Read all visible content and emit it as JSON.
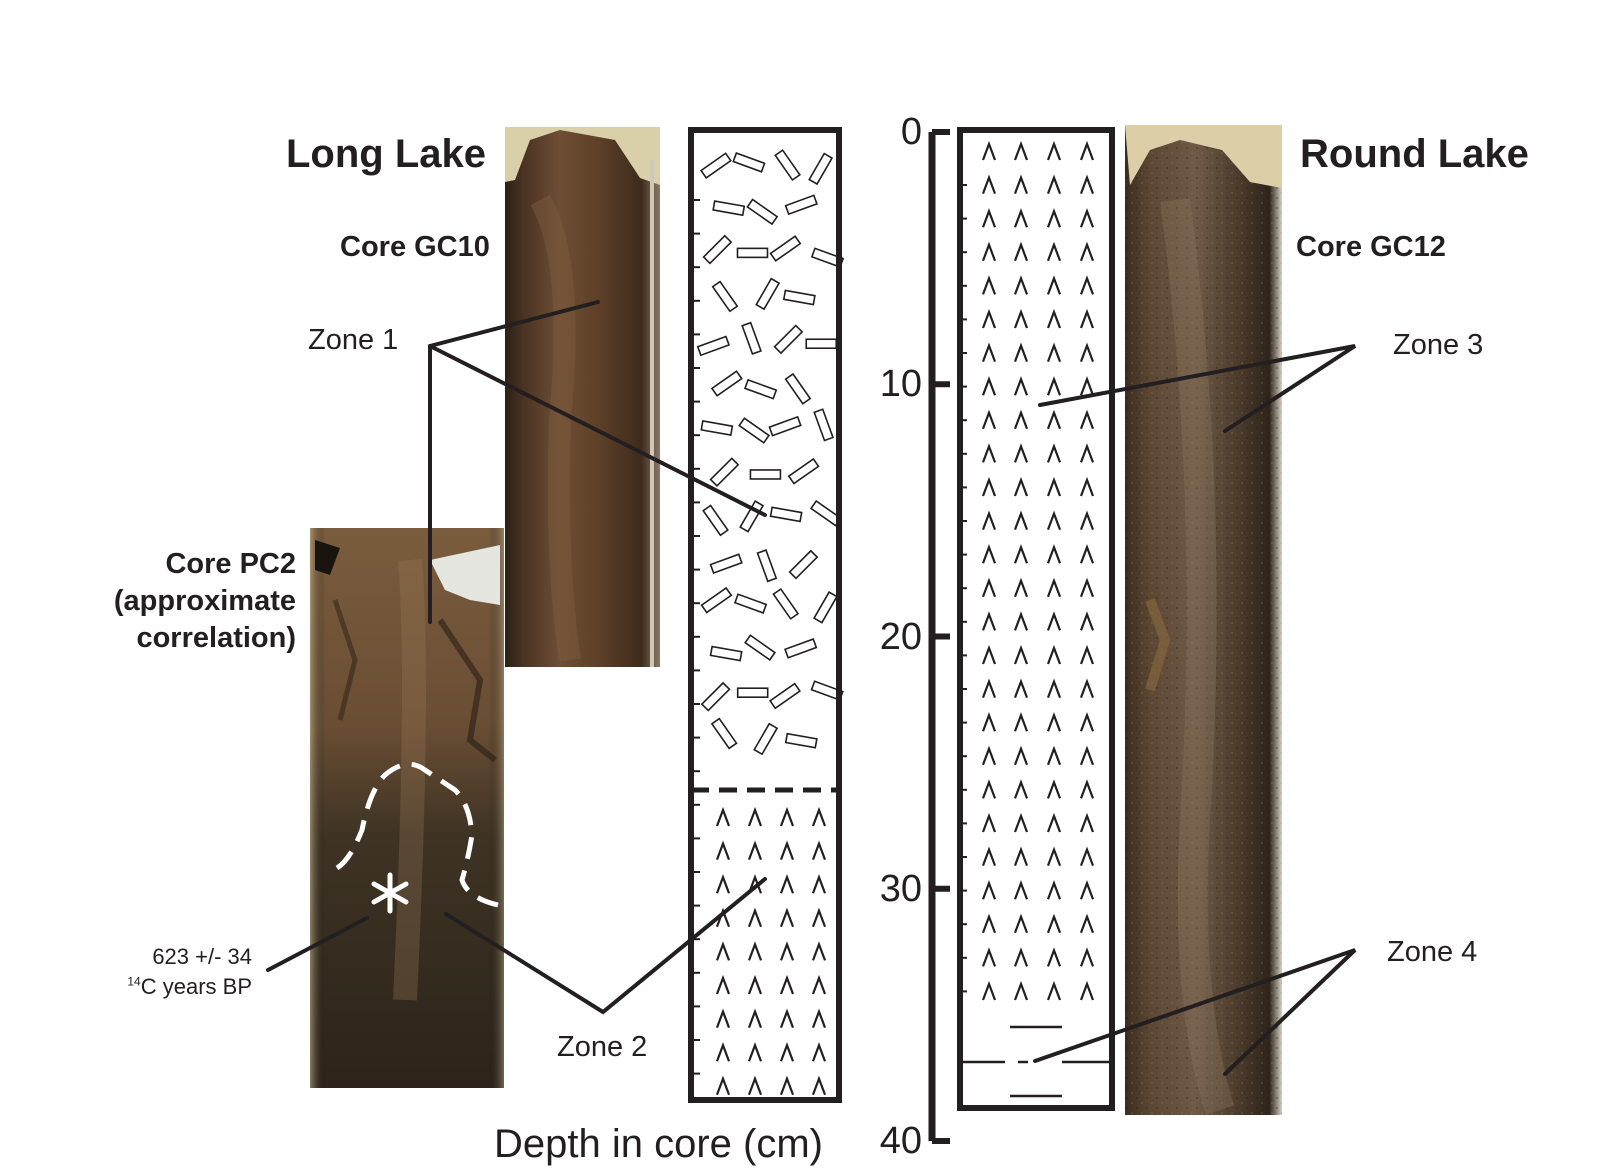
{
  "lakes": {
    "long": "Long Lake",
    "round": "Round Lake"
  },
  "cores": {
    "gc10": "Core GC10",
    "gc12": "Core GC12",
    "pc2_line1": "Core PC2",
    "pc2_line2": "(approximate",
    "pc2_line3": "correlation)"
  },
  "zones": {
    "z1": "Zone 1",
    "z2": "Zone 2",
    "z3": "Zone 3",
    "z4": "Zone 4"
  },
  "radiocarbon": {
    "line1": "623 +/- 34",
    "sup": "14",
    "line2": "C years BP"
  },
  "depth_axis": {
    "title": "Depth in core (cm)",
    "ticks": [
      "0",
      "10",
      "20",
      "30",
      "40"
    ],
    "range": [
      0,
      40
    ]
  },
  "colors": {
    "ink": "#231f20",
    "sediment_light": "#6a4a30",
    "sediment_dark": "#3a2c20"
  }
}
